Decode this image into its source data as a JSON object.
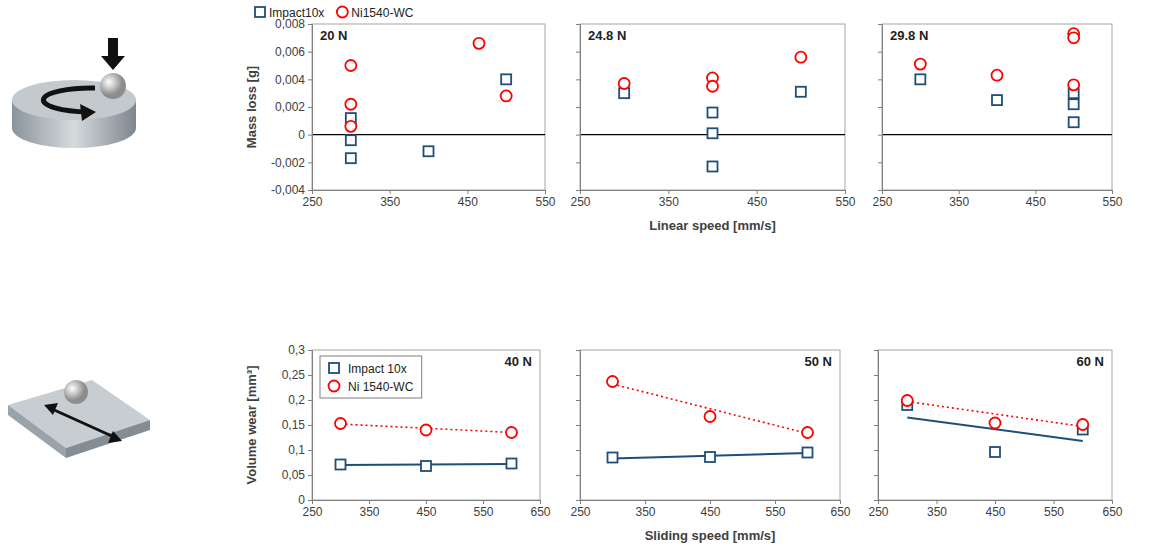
{
  "chart_data": [
    {
      "type": "scatter",
      "title": "20 N",
      "ylabel": "Mass loss [g]",
      "legend": "top",
      "xlim": [
        250,
        550
      ],
      "xticks": [
        250,
        350,
        450,
        550
      ],
      "ylim": [
        -0.004,
        0.008
      ],
      "yticks": [
        {
          "value": -0.004,
          "label": "-0,004"
        },
        {
          "value": -0.002,
          "label": "-0,002"
        },
        0,
        {
          "value": 0.002,
          "label": "0,002"
        },
        {
          "value": 0.004,
          "label": "0,004"
        },
        {
          "value": 0.006,
          "label": "0,006"
        },
        {
          "value": 0.008,
          "label": "0,008"
        }
      ],
      "series": [
        {
          "name": "Impact10x",
          "color": "#1f4e79",
          "marker": "square",
          "x": [
            300,
            300,
            300,
            400,
            500
          ],
          "values": [
            0.0012,
            -0.0004,
            -0.0017,
            -0.0012,
            0.004
          ]
        },
        {
          "name": "Ni1540-WC",
          "color": "#ff0000",
          "marker": "circle",
          "x": [
            300,
            300,
            300,
            465,
            500
          ],
          "values": [
            0.005,
            0.0022,
            0.0006,
            0.0066,
            0.0028
          ]
        }
      ]
    },
    {
      "type": "scatter",
      "title": "24.8 N",
      "xlabel": "Linear speed [mm/s]",
      "tick_labels": "x",
      "xlim": [
        250,
        550
      ],
      "xticks": [
        250,
        350,
        450,
        550
      ],
      "ylim": [
        -0.004,
        0.008
      ],
      "yticks": [
        -0.004,
        -0.002,
        0,
        0.002,
        0.004,
        0.006,
        0.008
      ],
      "series": [
        {
          "name": "Impact10x",
          "color": "#1f4e79",
          "marker": "square",
          "x": [
            300,
            400,
            400,
            400,
            500
          ],
          "values": [
            0.003,
            0.0016,
            0.0001,
            -0.0023,
            0.0031
          ]
        },
        {
          "name": "Ni1540-WC",
          "color": "#ff0000",
          "marker": "circle",
          "x": [
            300,
            400,
            400,
            500
          ],
          "values": [
            0.0037,
            0.0041,
            0.0035,
            0.0056
          ]
        }
      ]
    },
    {
      "type": "scatter",
      "title": "29.8 N",
      "tick_labels": "x",
      "xlim": [
        250,
        550
      ],
      "xticks": [
        250,
        350,
        450,
        550
      ],
      "ylim": [
        -0.004,
        0.008
      ],
      "yticks": [
        -0.004,
        -0.002,
        0,
        0.002,
        0.004,
        0.006,
        0.008
      ],
      "series": [
        {
          "name": "Impact10x",
          "color": "#1f4e79",
          "marker": "square",
          "x": [
            300,
            400,
            500,
            500,
            500
          ],
          "values": [
            0.004,
            0.0025,
            0.003,
            0.0022,
            0.0009
          ]
        },
        {
          "name": "Ni1540-WC",
          "color": "#ff0000",
          "marker": "circle",
          "x": [
            300,
            400,
            500,
            500,
            500
          ],
          "values": [
            0.0051,
            0.0043,
            0.0073,
            0.007,
            0.0036
          ]
        }
      ]
    },
    {
      "type": "scatter",
      "title": "40 N",
      "ylabel": "Volume wear [mm³]",
      "legend": "upper left",
      "xlim": [
        250,
        650
      ],
      "xticks": [
        250,
        350,
        450,
        550,
        650
      ],
      "ylim": [
        0,
        0.3
      ],
      "yticks": [
        0,
        {
          "value": 0.05,
          "label": "0,05"
        },
        {
          "value": 0.1,
          "label": "0,1"
        },
        {
          "value": 0.15,
          "label": "0,15"
        },
        {
          "value": 0.2,
          "label": "0,2"
        },
        {
          "value": 0.25,
          "label": "0,25"
        },
        {
          "value": 0.3,
          "label": "0,3"
        }
      ],
      "series": [
        {
          "name": "Impact 10x",
          "color": "#1f4e79",
          "marker": "square",
          "line_style": "solid",
          "x": [
            300,
            450,
            600
          ],
          "values": [
            0.071,
            0.068,
            0.073
          ],
          "trend_x": [
            300,
            600
          ],
          "trend": [
            0.07,
            0.072
          ]
        },
        {
          "name": "Ni 1540-WC",
          "color": "#ff0000",
          "marker": "circle",
          "line_style": "dotted",
          "x": [
            300,
            450,
            600
          ],
          "values": [
            0.153,
            0.14,
            0.135
          ],
          "trend_x": [
            300,
            600
          ],
          "trend": [
            0.152,
            0.135
          ]
        }
      ]
    },
    {
      "type": "scatter",
      "title": "50 N",
      "xlabel": "Sliding speed [mm/s]",
      "tick_labels": "x",
      "xlim": [
        250,
        650
      ],
      "xticks": [
        250,
        350,
        450,
        550,
        650
      ],
      "ylim": [
        0,
        0.3
      ],
      "yticks": [
        0,
        0.05,
        0.1,
        0.15,
        0.2,
        0.25,
        0.3
      ],
      "series": [
        {
          "name": "Impact 10x",
          "color": "#1f4e79",
          "marker": "square",
          "line_style": "solid",
          "x": [
            300,
            450,
            600
          ],
          "values": [
            0.085,
            0.086,
            0.095
          ],
          "trend_x": [
            300,
            600
          ],
          "trend": [
            0.083,
            0.094
          ]
        },
        {
          "name": "Ni 1540-WC",
          "color": "#ff0000",
          "marker": "circle",
          "line_style": "dotted",
          "x": [
            300,
            450,
            600
          ],
          "values": [
            0.237,
            0.167,
            0.135
          ],
          "trend_x": [
            300,
            600
          ],
          "trend": [
            0.232,
            0.133
          ]
        }
      ]
    },
    {
      "type": "scatter",
      "title": "60 N",
      "tick_labels": "x",
      "xlim": [
        250,
        650
      ],
      "xticks": [
        250,
        350,
        450,
        550,
        650
      ],
      "ylim": [
        0,
        0.3
      ],
      "yticks": [
        0,
        0.05,
        0.1,
        0.15,
        0.2,
        0.25,
        0.3
      ],
      "series": [
        {
          "name": "Impact 10x",
          "color": "#1f4e79",
          "marker": "square",
          "line_style": "solid",
          "x": [
            300,
            450,
            600
          ],
          "values": [
            0.19,
            0.096,
            0.141
          ],
          "trend_x": [
            300,
            600
          ],
          "trend": [
            0.165,
            0.118
          ]
        },
        {
          "name": "Ni 1540-WC",
          "color": "#ff0000",
          "marker": "circle",
          "line_style": "dotted",
          "x": [
            300,
            450,
            600
          ],
          "values": [
            0.199,
            0.154,
            0.151
          ],
          "trend_x": [
            300,
            600
          ],
          "trend": [
            0.197,
            0.147
          ]
        }
      ]
    }
  ]
}
